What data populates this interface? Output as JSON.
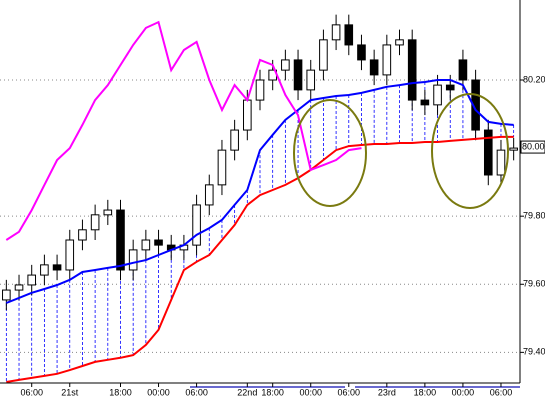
{
  "chart_data": {
    "type": "candlestick",
    "categories": [
      null,
      null,
      "06:00",
      null,
      null,
      "21st",
      null,
      null,
      null,
      "18:00",
      null,
      null,
      "00:00",
      null,
      null,
      "06:00",
      null,
      null,
      null,
      "22nd",
      null,
      "18:00",
      null,
      null,
      "00:00",
      null,
      null,
      "06:00",
      null,
      null,
      "23rd",
      null,
      null,
      "18:00",
      null,
      null,
      "00:00",
      null,
      null,
      "06:00",
      null
    ],
    "open": [
      79.554,
      79.583,
      79.598,
      79.627,
      79.657,
      79.642,
      79.73,
      79.76,
      79.804,
      79.818,
      79.642,
      79.701,
      79.73,
      79.715,
      79.701,
      79.715,
      79.833,
      79.892,
      79.994,
      80.053,
      80.141,
      80.2,
      80.229,
      80.259,
      80.171,
      80.229,
      80.318,
      80.362,
      80.303,
      80.259,
      80.215,
      80.303,
      80.318,
      80.141,
      80.127,
      80.185,
      80.259,
      80.2,
      80.053,
      79.921,
      79.994
    ],
    "high": [
      79.613,
      79.628,
      79.657,
      79.687,
      79.687,
      79.76,
      79.79,
      79.834,
      79.848,
      79.848,
      79.731,
      79.76,
      79.76,
      79.745,
      79.745,
      79.863,
      79.922,
      80.024,
      80.083,
      80.171,
      80.23,
      80.259,
      80.289,
      80.289,
      80.259,
      80.348,
      80.392,
      80.392,
      80.333,
      80.289,
      80.333,
      80.348,
      80.348,
      80.171,
      80.215,
      80.215,
      80.289,
      80.23,
      80.083,
      80.024,
      80.03
    ],
    "low": [
      79.524,
      79.553,
      79.568,
      79.597,
      79.612,
      79.612,
      79.7,
      79.73,
      79.774,
      79.612,
      79.612,
      79.671,
      79.685,
      79.671,
      79.671,
      79.685,
      79.803,
      79.862,
      79.964,
      80.023,
      80.111,
      80.17,
      80.199,
      80.141,
      80.141,
      80.199,
      80.288,
      80.273,
      80.229,
      80.185,
      80.185,
      80.273,
      80.111,
      80.097,
      80.097,
      80.141,
      80.17,
      80.023,
      79.891,
      79.891,
      79.964
    ],
    "close": [
      79.583,
      79.598,
      79.627,
      79.657,
      79.642,
      79.73,
      79.76,
      79.804,
      79.818,
      79.642,
      79.701,
      79.73,
      79.715,
      79.701,
      79.715,
      79.833,
      79.892,
      79.994,
      80.053,
      80.141,
      80.2,
      80.229,
      80.259,
      80.171,
      80.229,
      80.318,
      80.362,
      80.303,
      80.259,
      80.215,
      80.303,
      80.318,
      80.141,
      80.127,
      80.185,
      80.171,
      80.2,
      80.053,
      79.921,
      79.994,
      80.0
    ],
    "series": [
      {
        "color": "#0000ff",
        "values": [
          79.545,
          79.56,
          79.575,
          79.586,
          79.598,
          79.613,
          79.636,
          79.642,
          79.648,
          79.654,
          79.663,
          79.671,
          79.686,
          79.701,
          79.715,
          79.745,
          79.765,
          79.789,
          79.833,
          79.877,
          79.994,
          80.039,
          80.083,
          80.112,
          80.141,
          80.147,
          80.153,
          80.156,
          80.162,
          80.171,
          80.18,
          80.185,
          80.191,
          80.194,
          80.2,
          80.2,
          80.185,
          80.112,
          80.077,
          80.071,
          80.068
        ]
      },
      {
        "color": "#ff0000",
        "values": [
          79.313,
          79.319,
          79.325,
          79.331,
          79.337,
          79.348,
          79.36,
          79.372,
          79.378,
          79.384,
          79.392,
          79.422,
          79.466,
          79.554,
          79.642,
          79.666,
          79.686,
          79.73,
          79.774,
          79.833,
          79.862,
          79.877,
          79.892,
          79.912,
          79.936,
          79.965,
          79.994,
          80.006,
          80.009,
          80.012,
          80.012,
          80.015,
          80.015,
          80.018,
          80.018,
          80.021,
          80.024,
          80.027,
          80.03,
          80.033,
          80.033
        ]
      },
      {
        "color": "#ff00ff",
        "values": [
          79.73,
          79.754,
          79.818,
          79.892,
          79.965,
          80.0,
          80.068,
          80.141,
          80.185,
          80.244,
          80.303,
          80.353,
          80.37,
          80.229,
          80.288,
          80.312,
          80.2,
          80.112,
          80.185,
          80.141,
          80.259,
          80.244,
          80.156,
          80.097,
          79.936,
          79.95,
          79.965,
          79.994,
          80.0,
          null,
          null,
          null,
          null,
          null,
          null,
          null,
          null,
          null,
          null,
          null,
          null
        ]
      }
    ],
    "cloud_color": "#0000ff",
    "last_price": 80.003,
    "ylim": [
      79.31,
      80.435
    ],
    "yticks": [
      {
        "value": 79.4,
        "label": "79.400"
      },
      {
        "value": 79.6,
        "label": "79.600"
      },
      {
        "value": 79.8,
        "label": "79.800"
      },
      {
        "value": 80.2,
        "label": "80.200"
      }
    ],
    "grid": true
  }
}
